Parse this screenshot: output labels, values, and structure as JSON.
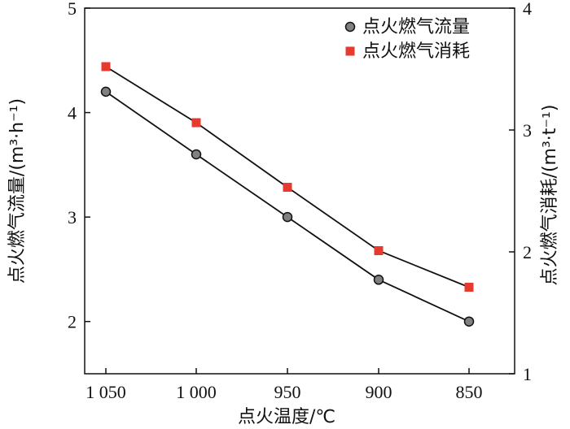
{
  "chart_data": {
    "type": "line",
    "categories": [
      "1 050",
      "1 000",
      "950",
      "900",
      "850"
    ],
    "xlabel": "点火温度/℃",
    "ylabel_left": "点火燃气流量/(m³·h⁻¹)",
    "ylabel_right": "点火燃气消耗/(m³·t⁻¹)",
    "ylim_left": [
      1.5,
      5
    ],
    "ylim_right": [
      1,
      4
    ],
    "yticks_left": [
      "2",
      "3",
      "4",
      "5"
    ],
    "yticks_right": [
      "1",
      "2",
      "3",
      "4"
    ],
    "grid": false,
    "legend_position": "top-right",
    "series": [
      {
        "name": "点火燃气流量",
        "axis": "left",
        "marker": "circle",
        "color": "#808080",
        "values": [
          4.2,
          3.6,
          3.0,
          2.4,
          2.0
        ]
      },
      {
        "name": "点火燃气消耗",
        "axis": "right",
        "marker": "square",
        "color": "#e8392f",
        "values": [
          3.52,
          3.06,
          2.53,
          2.01,
          1.71
        ]
      }
    ]
  }
}
